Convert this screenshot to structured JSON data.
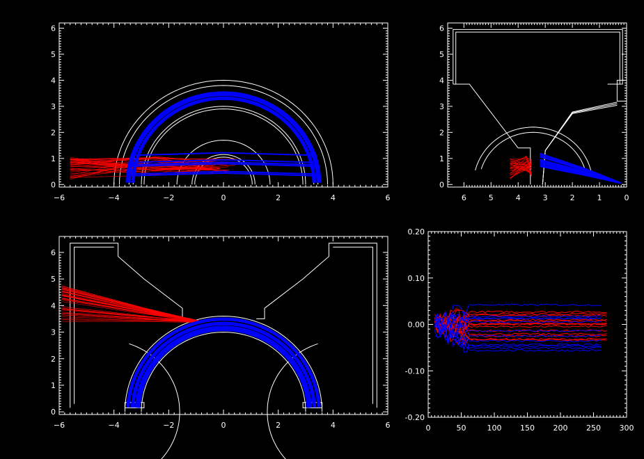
{
  "chart_data": [
    {
      "id": "top-left",
      "type": "line",
      "title": "",
      "xlabel": "",
      "ylabel": "",
      "xlim": [
        -6,
        6
      ],
      "ylim": [
        -0.1,
        6.2
      ],
      "x_ticks": [
        "−6",
        "−4",
        "−2",
        "0",
        "2",
        "4",
        "6"
      ],
      "x_tick_values": [
        -6,
        -4,
        -2,
        0,
        2,
        4,
        6
      ],
      "y_ticks": [
        "0",
        "1",
        "2",
        "3",
        "4",
        "5",
        "6"
      ],
      "y_tick_values": [
        0,
        1,
        2,
        3,
        4,
        5,
        6
      ],
      "series": [
        {
          "color": "#ffffff",
          "kind": "structure"
        },
        {
          "color": "#ff0000",
          "kind": "incoming-trajectories"
        },
        {
          "color": "#0000ff",
          "kind": "confined-trajectories"
        }
      ]
    },
    {
      "id": "top-right",
      "type": "line",
      "title": "",
      "xlabel": "",
      "ylabel": "",
      "xlim": [
        6.6,
        0
      ],
      "ylim": [
        -0.1,
        6.2
      ],
      "x_ticks": [
        "6",
        "5",
        "4",
        "3",
        "2",
        "1",
        "0"
      ],
      "x_tick_values": [
        6,
        5,
        4,
        3,
        2,
        1,
        0
      ],
      "y_ticks": [
        "0",
        "1",
        "2",
        "3",
        "4",
        "5",
        "6"
      ],
      "y_tick_values": [
        0,
        1,
        2,
        3,
        4,
        5,
        6
      ],
      "series": [
        {
          "color": "#ffffff",
          "kind": "structure"
        },
        {
          "color": "#ff0000",
          "kind": "incoming-trajectories"
        },
        {
          "color": "#0000ff",
          "kind": "confined-trajectories"
        }
      ]
    },
    {
      "id": "bottom-left",
      "type": "line",
      "title": "",
      "xlabel": "",
      "ylabel": "",
      "xlim": [
        -6,
        6
      ],
      "ylim": [
        -0.1,
        6.6
      ],
      "x_ticks": [
        "−6",
        "−4",
        "−2",
        "0",
        "2",
        "4",
        "6"
      ],
      "x_tick_values": [
        -6,
        -4,
        -2,
        0,
        2,
        4,
        6
      ],
      "y_ticks": [
        "0",
        "1",
        "2",
        "3",
        "4",
        "5",
        "6"
      ],
      "y_tick_values": [
        0,
        1,
        2,
        3,
        4,
        5,
        6
      ],
      "series": [
        {
          "color": "#ffffff",
          "kind": "structure"
        },
        {
          "color": "#ff0000",
          "kind": "incoming-trajectories"
        },
        {
          "color": "#0000ff",
          "kind": "confined-trajectories"
        }
      ]
    },
    {
      "id": "bottom-right",
      "type": "line",
      "title": "",
      "xlabel": "",
      "ylabel": "",
      "xlim": [
        0,
        300
      ],
      "ylim": [
        -0.2,
        0.2
      ],
      "x_ticks": [
        "0",
        "50",
        "100",
        "150",
        "200",
        "250",
        "300"
      ],
      "x_tick_values": [
        0,
        50,
        100,
        150,
        200,
        250,
        300
      ],
      "y_ticks": [
        "-0.20",
        "-0.10",
        "0.00",
        "0.10",
        "0.20"
      ],
      "y_tick_values": [
        -0.2,
        -0.1,
        0,
        0.1,
        0.2
      ],
      "series": [
        {
          "color": "#ff0000",
          "kind": "time-traces",
          "x_range": [
            10,
            270
          ],
          "y_range": [
            -0.045,
            0.03
          ]
        },
        {
          "color": "#0000ff",
          "kind": "time-traces",
          "x_range": [
            10,
            265
          ],
          "y_range": [
            -0.06,
            0.06
          ]
        }
      ]
    }
  ]
}
